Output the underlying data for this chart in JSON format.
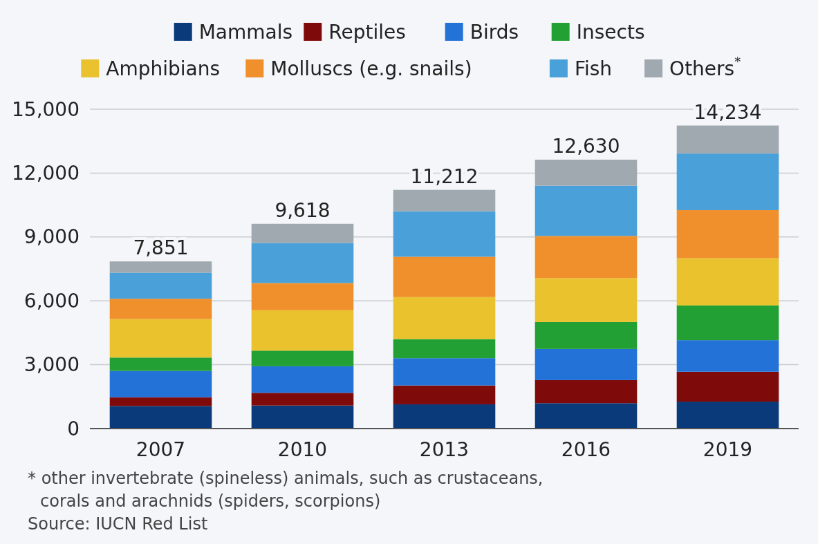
{
  "chart_data": {
    "type": "bar",
    "stacked": true,
    "categories": [
      "2007",
      "2010",
      "2013",
      "2016",
      "2019"
    ],
    "series": [
      {
        "name": "Mammals",
        "color": "#0a3a7a",
        "values": [
          1060,
          1082,
          1138,
          1192,
          1265
        ]
      },
      {
        "name": "Reptiles",
        "color": "#7f0a0a",
        "values": [
          412,
          595,
          887,
          1083,
          1405
        ]
      },
      {
        "name": "Birds",
        "color": "#2272d8",
        "values": [
          1235,
          1248,
          1280,
          1463,
          1481
        ]
      },
      {
        "name": "Insects",
        "color": "#23a033",
        "values": [
          628,
          735,
          898,
          1267,
          1632
        ]
      },
      {
        "name": "Amphibians",
        "color": "#e9c22e",
        "values": [
          1810,
          1898,
          1972,
          2064,
          2217
        ]
      },
      {
        "name": "Molluscs (e.g. snails)",
        "color": "#f0902c",
        "values": [
          952,
          1277,
          1895,
          1978,
          2259
        ]
      },
      {
        "name": "Fish",
        "color": "#4aa0d8",
        "values": [
          1225,
          1885,
          2135,
          2361,
          2659
        ]
      },
      {
        "name": "Others$^{*}$",
        "color": "#a0a8b0",
        "values": [
          529,
          898,
          1007,
          1222,
          1316
        ]
      }
    ],
    "totals": [
      "7,851",
      "9,618",
      "11,212",
      "12,630",
      "14,234"
    ],
    "ylim": [
      0,
      15000
    ],
    "yticks": [
      {
        "value": 0,
        "label": "0"
      },
      {
        "value": 3000,
        "label": "3,000"
      },
      {
        "value": 6000,
        "label": "6,000"
      },
      {
        "value": 9000,
        "label": "9,000"
      },
      {
        "value": 12000,
        "label": "12,000"
      },
      {
        "value": 15000,
        "label": "15,000"
      }
    ],
    "grid": "y",
    "legend": "top",
    "annotations": [
      "* other invertebrate (spineless) animals, such as crustaceans, corals and arachnids (spiders, scorpions)",
      "Source: IUCN Red List"
    ]
  }
}
